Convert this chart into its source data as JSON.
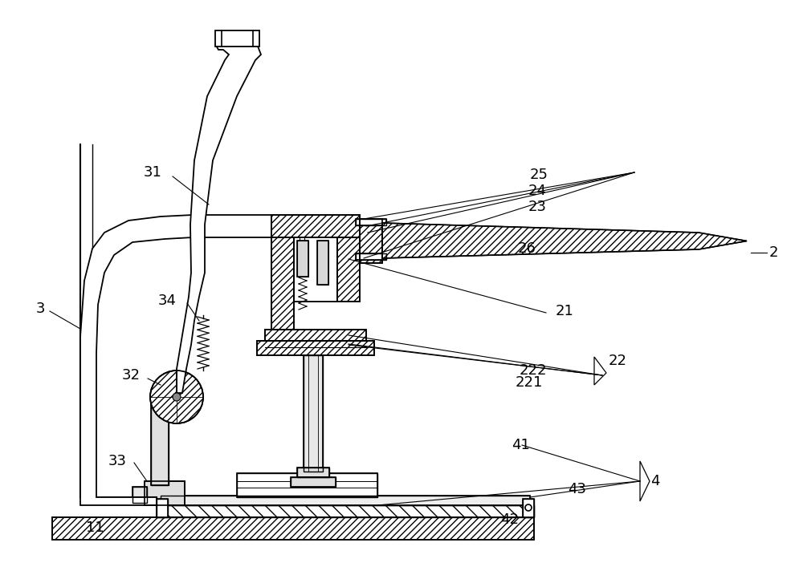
{
  "bg_color": "#ffffff",
  "line_color": "#000000",
  "fig_width": 10.0,
  "fig_height": 7.17,
  "font_size": 13,
  "lw": 1.2
}
